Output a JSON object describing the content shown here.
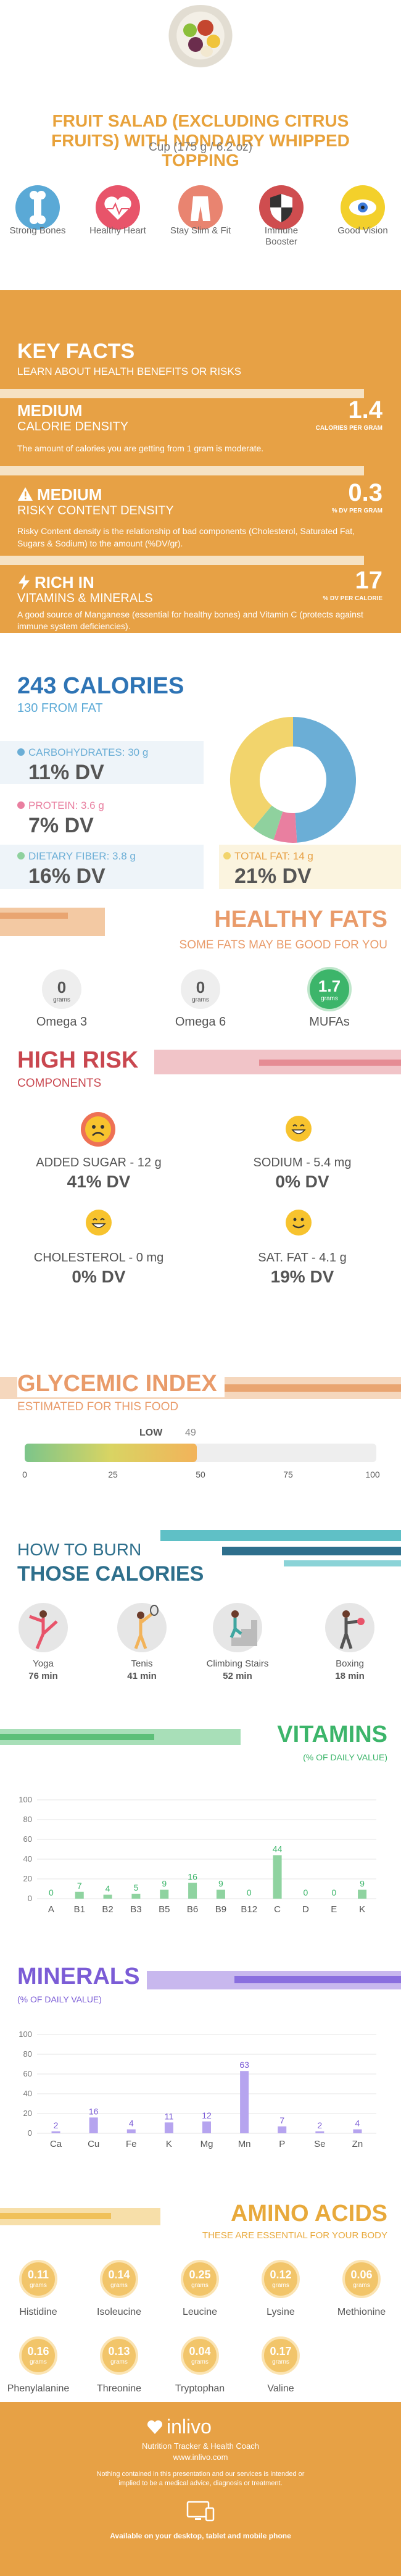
{
  "title": "Fruit salad (excluding citrus fruits) with nondairy whipped topping",
  "serving": "Cup (175 g / 6.2 oz)",
  "benefits": [
    {
      "label": "Strong Bones",
      "icon": "bone-icon",
      "color": "#5aa9d6"
    },
    {
      "label": "Healthy Heart",
      "icon": "heart-icon",
      "color": "#e8546a"
    },
    {
      "label": "Stay Slim & Fit",
      "icon": "pants-icon",
      "color": "#e98470"
    },
    {
      "label": "Immune Booster",
      "icon": "shield-icon",
      "color": "#cf4d4f"
    },
    {
      "label": "Good Vision",
      "icon": "eye-icon",
      "color": "#f3d02b"
    }
  ],
  "key_facts": {
    "title": "KEY FACTS",
    "subtitle": "LEARN ABOUT HEALTH BENEFITS OR RISKS",
    "f1": {
      "badge": "MEDIUM",
      "name": "CALORIE DENSITY",
      "value": "1.4",
      "unit": "CALORIES PER GRAM",
      "desc": "The amount of calories you are getting from 1 gram is moderate."
    },
    "f2": {
      "badge": "MEDIUM",
      "name": "RISKY CONTENT DENSITY",
      "value": "0.3",
      "unit": "% DV PER GRAM",
      "desc": "Risky Content density is the relationship of bad components (Cholesterol, Saturated Fat, Sugars & Sodium) to the amount (%DV/gr)."
    },
    "f3": {
      "badge": "RICH IN",
      "name": "VITAMINS & MINERALS",
      "value": "17",
      "unit": "% DV PER CALORIE",
      "desc": "A good source of Manganese (essential for healthy bones) and Vitamin C (protects against immune system deficiencies)."
    }
  },
  "calories": {
    "title": "243 CALORIES",
    "from_fat": "130 FROM FAT",
    "carbs_label": "CARBOHYDRATES: 30 g",
    "carbs_dv": "11% DV",
    "protein_label": "PROTEIN: 3.6 g",
    "protein_dv": "7% DV",
    "fiber_label": "DIETARY FIBER: 3.8 g",
    "fiber_dv": "16% DV",
    "fat_label": "TOTAL FAT: 14 g",
    "fat_dv": "21% DV",
    "donut": [
      {
        "name": "carbs",
        "value": 49,
        "color": "#6baed6"
      },
      {
        "name": "fiber",
        "value": 6,
        "color": "#e97fa0"
      },
      {
        "name": "protein",
        "value": 6,
        "color": "#8fd19e"
      },
      {
        "name": "fat",
        "value": 39,
        "color": "#f2d46c"
      }
    ]
  },
  "fats": {
    "title": "HEALTHY FATS",
    "subtitle": "SOME FATS MAY BE GOOD FOR YOU",
    "items": [
      {
        "value": "0",
        "unit": "grams",
        "label": "Omega 3"
      },
      {
        "value": "0",
        "unit": "grams",
        "label": "Omega 6"
      },
      {
        "value": "1.7",
        "unit": "grams",
        "label": "MUFAs"
      }
    ]
  },
  "risk": {
    "title": "HIGH RISK",
    "subtitle": "COMPONENTS",
    "items": [
      {
        "label": "ADDED SUGAR - 12 g",
        "dv": "41% DV",
        "face": "sad"
      },
      {
        "label": "SODIUM - 5.4 mg",
        "dv": "0% DV",
        "face": "happy"
      },
      {
        "label": "CHOLESTEROL - 0 mg",
        "dv": "0% DV",
        "face": "happy"
      },
      {
        "label": "SAT. FAT - 4.1 g",
        "dv": "19% DV",
        "face": "smile"
      }
    ]
  },
  "gi": {
    "title": "GLYCEMIC INDEX",
    "subtitle": "ESTIMATED FOR THIS FOOD",
    "level": "LOW",
    "value": "49",
    "gi_value": 49,
    "ticks": [
      "0",
      "25",
      "50",
      "75",
      "100"
    ]
  },
  "burn": {
    "title1": "HOW TO BURN",
    "title2": "THOSE CALORIES",
    "items": [
      {
        "label": "Yoga",
        "time": "76 min"
      },
      {
        "label": "Tenis",
        "time": "41 min"
      },
      {
        "label": "Climbing Stairs",
        "time": "52 min"
      },
      {
        "label": "Boxing",
        "time": "18 min"
      }
    ]
  },
  "vitamins": {
    "title": "VITAMINS",
    "subtitle": "(% OF DAILY VALUE)",
    "chart_data": {
      "type": "bar",
      "categories": [
        "A",
        "B1",
        "B2",
        "B3",
        "B5",
        "B6",
        "B9",
        "B12",
        "C",
        "D",
        "E",
        "K"
      ],
      "values": [
        0,
        7,
        4,
        5,
        9,
        16,
        9,
        0,
        44,
        0,
        0,
        9
      ],
      "ylim": [
        0,
        100
      ],
      "yticks": [
        "0",
        "20",
        "40",
        "60",
        "80",
        "100"
      ]
    }
  },
  "minerals": {
    "title": "MINERALS",
    "subtitle": "(% OF DAILY VALUE)",
    "chart_data": {
      "type": "bar",
      "categories": [
        "Ca",
        "Cu",
        "Fe",
        "K",
        "Mg",
        "Mn",
        "P",
        "Se",
        "Zn"
      ],
      "values": [
        2,
        16,
        4,
        11,
        12,
        63,
        7,
        2,
        4
      ],
      "ylim": [
        0,
        100
      ],
      "yticks": [
        "0",
        "20",
        "40",
        "60",
        "80",
        "100"
      ]
    }
  },
  "amino": {
    "title": "AMINO ACIDS",
    "subtitle": "THESE ARE ESSENTIAL FOR YOUR BODY",
    "unit": "grams",
    "row1": [
      {
        "v": "0.11",
        "n": "Histidine"
      },
      {
        "v": "0.14",
        "n": "Isoleucine"
      },
      {
        "v": "0.25",
        "n": "Leucine"
      },
      {
        "v": "0.12",
        "n": "Lysine"
      },
      {
        "v": "0.06",
        "n": "Methionine"
      }
    ],
    "row2": [
      {
        "v": "0.16",
        "n": "Phenylalanine"
      },
      {
        "v": "0.13",
        "n": "Threonine"
      },
      {
        "v": "0.04",
        "n": "Tryptophan"
      },
      {
        "v": "0.17",
        "n": "Valine"
      }
    ]
  },
  "footer": {
    "brand": "inlivo",
    "tag": "Nutrition Tracker & Health Coach",
    "url": "www.inlivo.com",
    "disclaimer": "Nothing contained in this presentation and our services is intended or implied to be a medical advice, diagnosis or treatment.",
    "avail": "Available on your desktop, tablet and mobile phone"
  }
}
